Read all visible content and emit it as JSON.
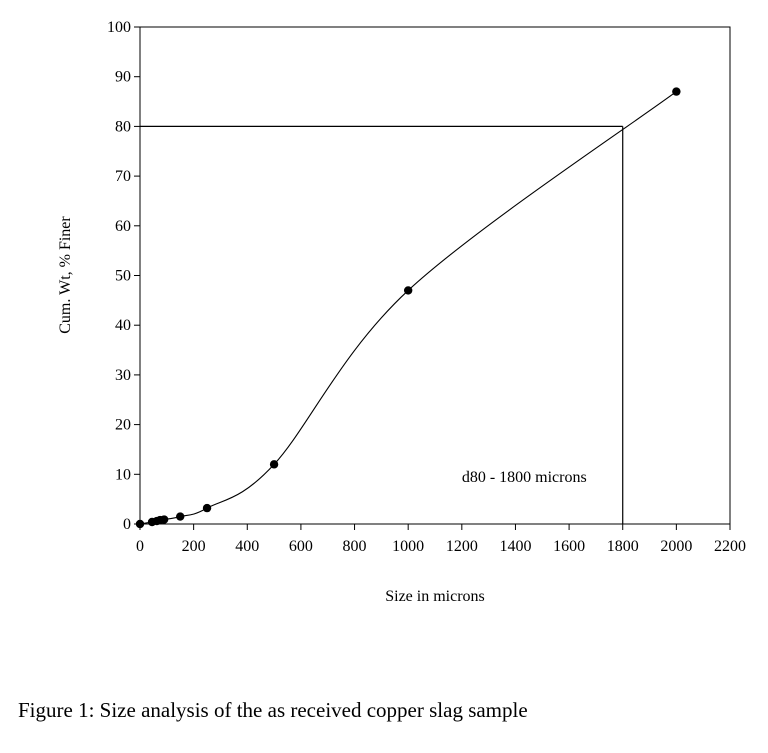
{
  "chart_data": {
    "type": "scatter",
    "title": "",
    "xlabel": "Size in microns",
    "ylabel": "Cum. Wt, % Finer",
    "xlim": [
      0,
      2200
    ],
    "ylim": [
      0,
      100
    ],
    "x_ticks": [
      0,
      200,
      400,
      600,
      800,
      1000,
      1200,
      1400,
      1600,
      1800,
      2000,
      2200
    ],
    "y_ticks": [
      0,
      10,
      20,
      30,
      40,
      50,
      60,
      70,
      80,
      90,
      100
    ],
    "grid": false,
    "legend": "none",
    "series": [
      {
        "smooth_line": true,
        "marker": "circle",
        "points": [
          {
            "x": 0,
            "y": 0
          },
          {
            "x": 45,
            "y": 0.4
          },
          {
            "x": 63,
            "y": 0.6
          },
          {
            "x": 75,
            "y": 0.8
          },
          {
            "x": 90,
            "y": 0.9
          },
          {
            "x": 150,
            "y": 1.5
          },
          {
            "x": 250,
            "y": 3.2
          },
          {
            "x": 500,
            "y": 12
          },
          {
            "x": 1000,
            "y": 47
          },
          {
            "x": 2000,
            "y": 87
          }
        ]
      }
    ],
    "reference_lines": [
      {
        "from": {
          "x": 0,
          "y": 80
        },
        "to": {
          "x": 1800,
          "y": 80
        }
      },
      {
        "from": {
          "x": 1800,
          "y": 0
        },
        "to": {
          "x": 1800,
          "y": 80
        }
      }
    ],
    "annotations": [
      {
        "text": "d80 - 1800 microns",
        "x": 1200,
        "y": 8.5
      }
    ]
  },
  "caption": "Figure 1: Size analysis of the as received copper slag sample"
}
